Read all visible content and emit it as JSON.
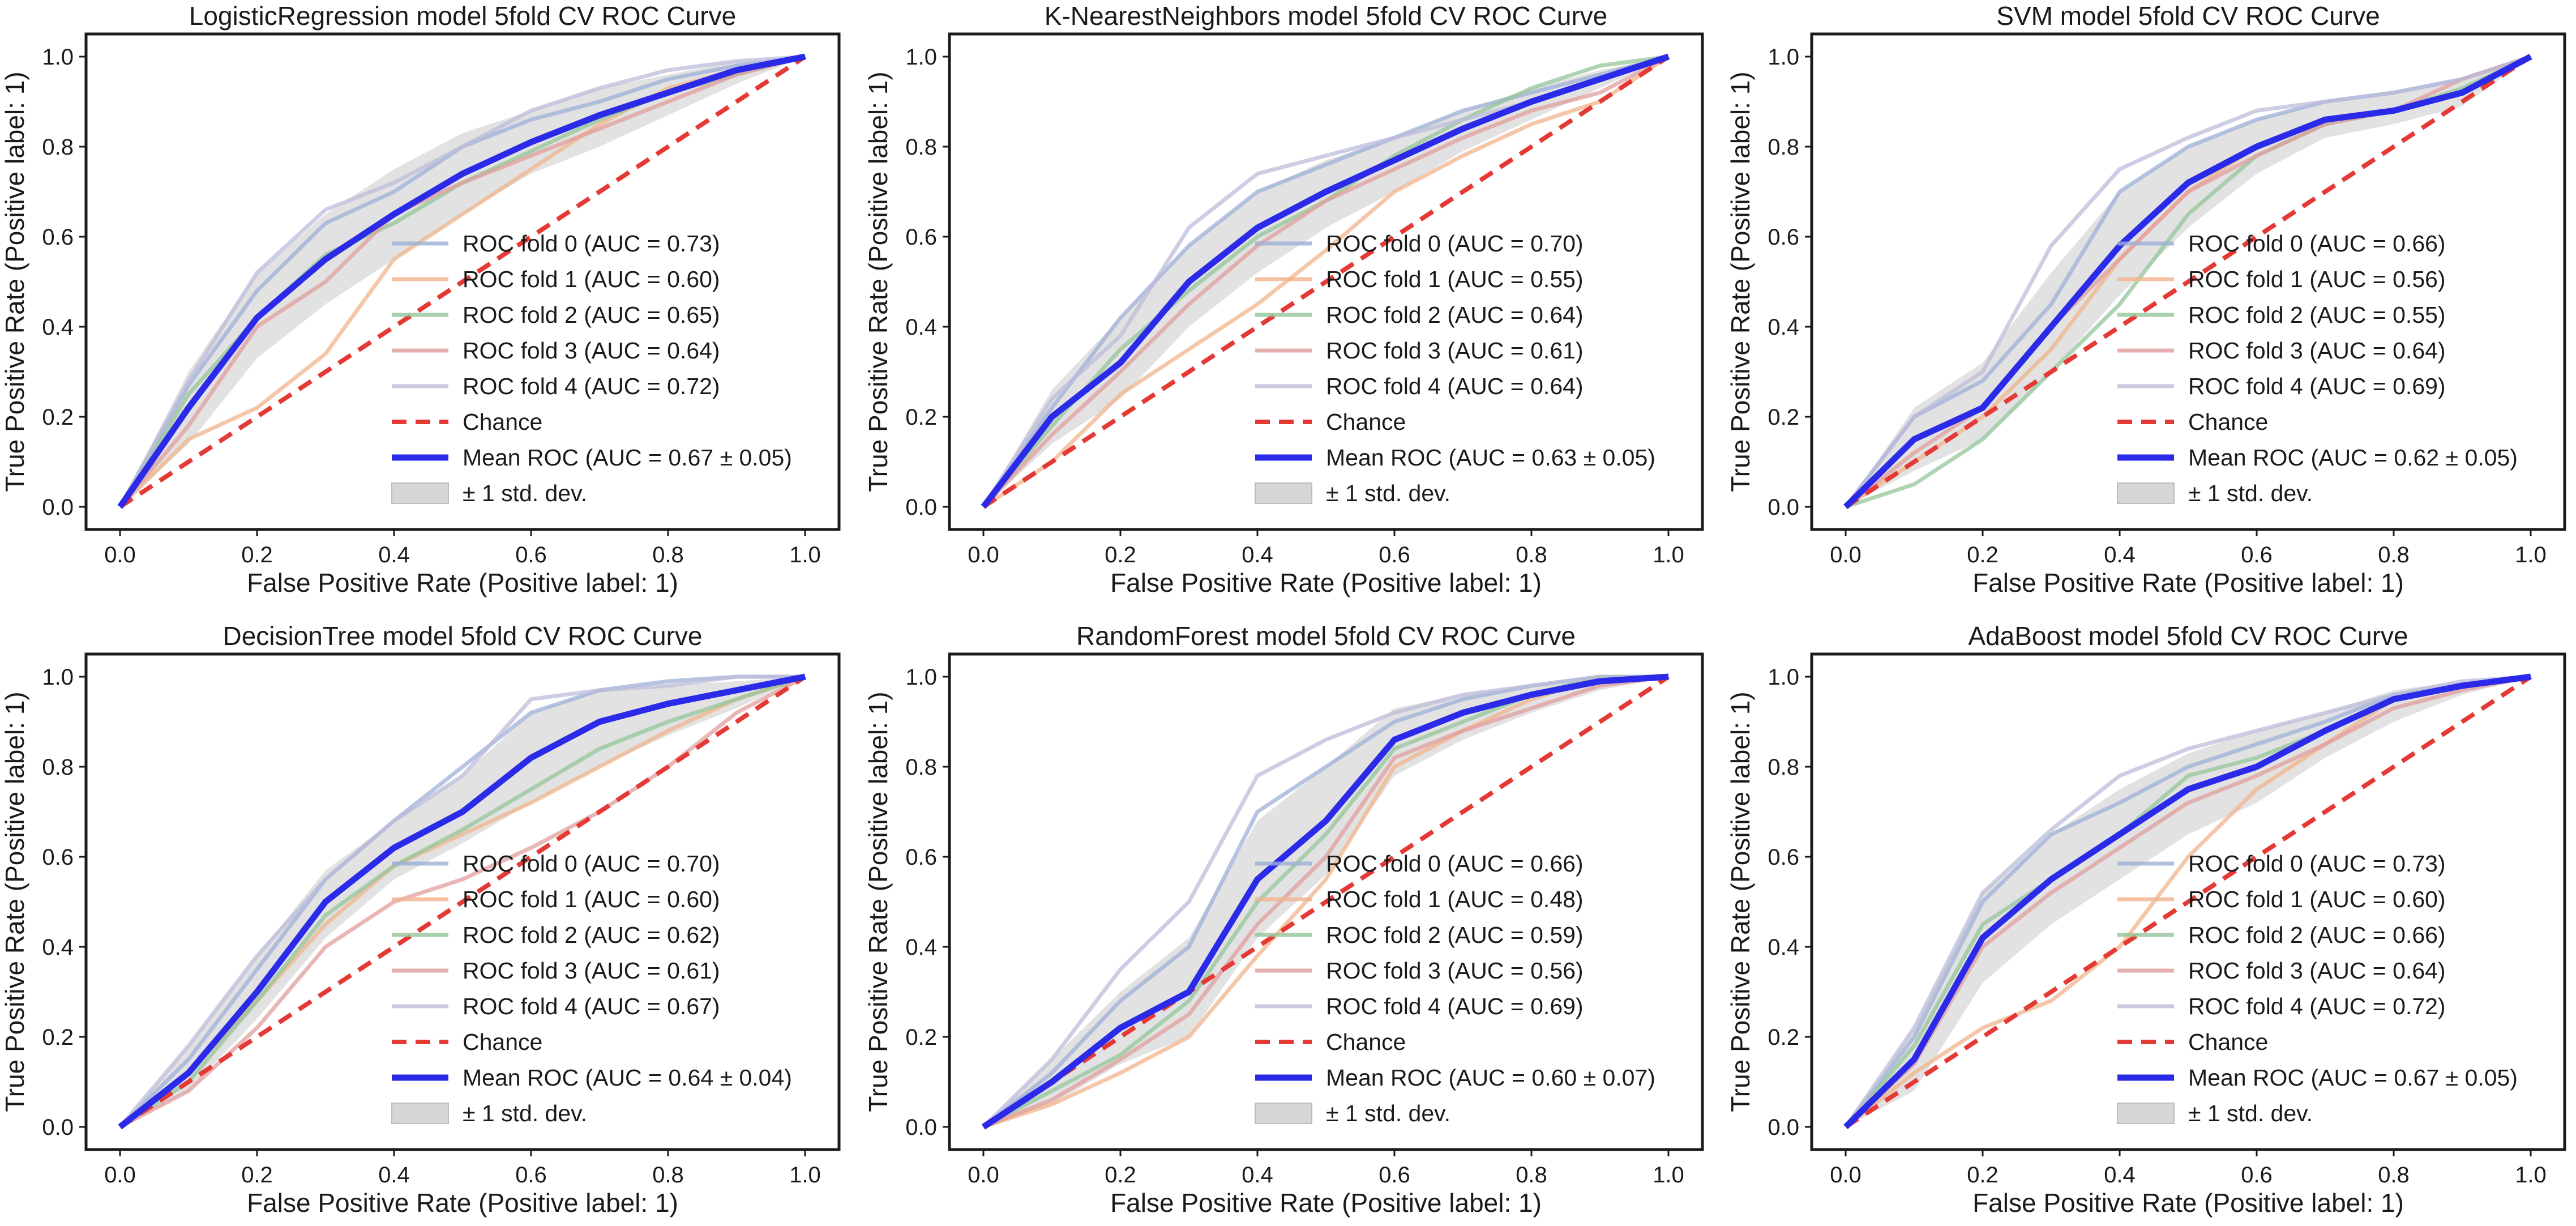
{
  "figure": {
    "legend_location": "lower-right",
    "grid": false
  },
  "colors": {
    "fold": [
      "#9eb0d8",
      "#f2b48c",
      "#93c59a",
      "#e29d9d",
      "#bcbcdb"
    ],
    "chance": "#e53935",
    "mean": "#2a2ae8",
    "band": "#d6d6d6"
  },
  "chart_data": [
    {
      "type": "line",
      "title": "LogisticRegression model 5fold CV ROC Curve",
      "xlabel": "False Positive Rate (Positive label: 1)",
      "ylabel": "True Positive Rate (Positive label: 1)",
      "xlim": [
        0,
        1
      ],
      "ylim": [
        0,
        1
      ],
      "xticks": [
        "0.0",
        "0.2",
        "0.4",
        "0.6",
        "0.8",
        "1.0"
      ],
      "yticks": [
        "0.0",
        "0.2",
        "0.4",
        "0.6",
        "0.8",
        "1.0"
      ],
      "legend": [
        "ROC fold 0 (AUC = 0.73)",
        "ROC fold 1 (AUC = 0.60)",
        "ROC fold 2 (AUC = 0.65)",
        "ROC fold 3 (AUC = 0.64)",
        "ROC fold 4 (AUC = 0.72)",
        "Chance",
        "Mean ROC (AUC = 0.67 ± 0.05)",
        "± 1 std. dev."
      ],
      "x": [
        0,
        0.1,
        0.2,
        0.3,
        0.4,
        0.5,
        0.6,
        0.7,
        0.8,
        0.9,
        1.0
      ],
      "mean_tpr": [
        0,
        0.22,
        0.42,
        0.55,
        0.65,
        0.74,
        0.81,
        0.87,
        0.92,
        0.97,
        1.0
      ],
      "std_upper": [
        0,
        0.3,
        0.52,
        0.65,
        0.75,
        0.83,
        0.88,
        0.93,
        0.96,
        0.99,
        1.0
      ],
      "std_lower": [
        0,
        0.14,
        0.33,
        0.45,
        0.55,
        0.65,
        0.74,
        0.8,
        0.87,
        0.94,
        1.0
      ],
      "folds": [
        [
          0,
          0.27,
          0.48,
          0.63,
          0.7,
          0.8,
          0.86,
          0.9,
          0.95,
          0.98,
          1.0
        ],
        [
          0,
          0.15,
          0.22,
          0.34,
          0.55,
          0.65,
          0.75,
          0.85,
          0.93,
          0.97,
          1.0
        ],
        [
          0,
          0.25,
          0.42,
          0.56,
          0.63,
          0.72,
          0.79,
          0.86,
          0.92,
          0.96,
          1.0
        ],
        [
          0,
          0.18,
          0.4,
          0.5,
          0.65,
          0.72,
          0.78,
          0.84,
          0.9,
          0.96,
          1.0
        ],
        [
          0,
          0.28,
          0.52,
          0.66,
          0.72,
          0.8,
          0.88,
          0.93,
          0.97,
          0.99,
          1.0
        ]
      ]
    },
    {
      "type": "line",
      "title": "K-NearestNeighbors model 5fold CV ROC Curve",
      "xlabel": "False Positive Rate (Positive label: 1)",
      "ylabel": "True Positive Rate (Positive label: 1)",
      "xlim": [
        0,
        1
      ],
      "ylim": [
        0,
        1
      ],
      "xticks": [
        "0.0",
        "0.2",
        "0.4",
        "0.6",
        "0.8",
        "1.0"
      ],
      "yticks": [
        "0.0",
        "0.2",
        "0.4",
        "0.6",
        "0.8",
        "1.0"
      ],
      "legend": [
        "ROC fold 0 (AUC = 0.70)",
        "ROC fold 1 (AUC = 0.55)",
        "ROC fold 2 (AUC = 0.64)",
        "ROC fold 3 (AUC = 0.61)",
        "ROC fold 4 (AUC = 0.64)",
        "Chance",
        "Mean ROC (AUC = 0.63 ± 0.05)",
        "± 1 std. dev."
      ],
      "x": [
        0,
        0.1,
        0.2,
        0.3,
        0.4,
        0.5,
        0.6,
        0.7,
        0.8,
        0.9,
        1.0
      ],
      "mean_tpr": [
        0,
        0.2,
        0.32,
        0.5,
        0.62,
        0.7,
        0.77,
        0.84,
        0.9,
        0.95,
        1.0
      ],
      "std_upper": [
        0,
        0.26,
        0.42,
        0.58,
        0.7,
        0.77,
        0.82,
        0.88,
        0.93,
        0.97,
        1.0
      ],
      "std_lower": [
        0,
        0.14,
        0.24,
        0.4,
        0.52,
        0.62,
        0.7,
        0.79,
        0.86,
        0.93,
        1.0
      ],
      "folds": [
        [
          0,
          0.22,
          0.42,
          0.58,
          0.7,
          0.76,
          0.82,
          0.88,
          0.92,
          0.96,
          1.0
        ],
        [
          0,
          0.1,
          0.25,
          0.35,
          0.45,
          0.57,
          0.7,
          0.78,
          0.85,
          0.9,
          1.0
        ],
        [
          0,
          0.18,
          0.35,
          0.48,
          0.6,
          0.68,
          0.78,
          0.86,
          0.93,
          0.98,
          1.0
        ],
        [
          0,
          0.16,
          0.3,
          0.45,
          0.58,
          0.68,
          0.75,
          0.82,
          0.88,
          0.92,
          1.0
        ],
        [
          0,
          0.24,
          0.38,
          0.62,
          0.74,
          0.78,
          0.82,
          0.86,
          0.9,
          0.95,
          1.0
        ]
      ]
    },
    {
      "type": "line",
      "title": "SVM model 5fold CV ROC Curve",
      "xlabel": "False Positive Rate (Positive label: 1)",
      "ylabel": "True Positive Rate (Positive label: 1)",
      "xlim": [
        0,
        1
      ],
      "ylim": [
        0,
        1
      ],
      "xticks": [
        "0.0",
        "0.2",
        "0.4",
        "0.6",
        "0.8",
        "1.0"
      ],
      "yticks": [
        "0.0",
        "0.2",
        "0.4",
        "0.6",
        "0.8",
        "1.0"
      ],
      "legend": [
        "ROC fold 0 (AUC = 0.66)",
        "ROC fold 1 (AUC = 0.56)",
        "ROC fold 2 (AUC = 0.55)",
        "ROC fold 3 (AUC = 0.64)",
        "ROC fold 4 (AUC = 0.69)",
        "Chance",
        "Mean ROC (AUC = 0.62 ± 0.05)",
        "± 1 std. dev."
      ],
      "x": [
        0,
        0.1,
        0.2,
        0.3,
        0.4,
        0.5,
        0.6,
        0.7,
        0.8,
        0.9,
        1.0
      ],
      "mean_tpr": [
        0,
        0.15,
        0.22,
        0.4,
        0.58,
        0.72,
        0.8,
        0.86,
        0.88,
        0.92,
        1.0
      ],
      "std_upper": [
        0,
        0.22,
        0.32,
        0.52,
        0.7,
        0.8,
        0.86,
        0.9,
        0.92,
        0.95,
        1.0
      ],
      "std_lower": [
        0,
        0.08,
        0.15,
        0.3,
        0.47,
        0.62,
        0.74,
        0.82,
        0.85,
        0.89,
        1.0
      ],
      "folds": [
        [
          0,
          0.2,
          0.28,
          0.45,
          0.7,
          0.8,
          0.86,
          0.9,
          0.92,
          0.95,
          1.0
        ],
        [
          0,
          0.1,
          0.2,
          0.35,
          0.55,
          0.7,
          0.8,
          0.86,
          0.88,
          0.92,
          1.0
        ],
        [
          0,
          0.05,
          0.15,
          0.3,
          0.45,
          0.65,
          0.78,
          0.85,
          0.88,
          0.93,
          1.0
        ],
        [
          0,
          0.12,
          0.22,
          0.4,
          0.55,
          0.7,
          0.78,
          0.85,
          0.88,
          0.95,
          1.0
        ],
        [
          0,
          0.2,
          0.3,
          0.58,
          0.75,
          0.82,
          0.88,
          0.9,
          0.92,
          0.95,
          1.0
        ]
      ]
    },
    {
      "type": "line",
      "title": "DecisionTree model 5fold CV ROC Curve",
      "xlabel": "False Positive Rate (Positive label: 1)",
      "ylabel": "True Positive Rate (Positive label: 1)",
      "xlim": [
        0,
        1
      ],
      "ylim": [
        0,
        1
      ],
      "xticks": [
        "0.0",
        "0.2",
        "0.4",
        "0.6",
        "0.8",
        "1.0"
      ],
      "yticks": [
        "0.0",
        "0.2",
        "0.4",
        "0.6",
        "0.8",
        "1.0"
      ],
      "legend": [
        "ROC fold 0 (AUC = 0.70)",
        "ROC fold 1 (AUC = 0.60)",
        "ROC fold 2 (AUC = 0.62)",
        "ROC fold 3 (AUC = 0.61)",
        "ROC fold 4 (AUC = 0.67)",
        "Chance",
        "Mean ROC (AUC = 0.64 ± 0.04)",
        "± 1 std. dev."
      ],
      "x": [
        0,
        0.1,
        0.2,
        0.3,
        0.4,
        0.5,
        0.6,
        0.7,
        0.8,
        0.9,
        1.0
      ],
      "mean_tpr": [
        0,
        0.12,
        0.3,
        0.5,
        0.62,
        0.7,
        0.82,
        0.9,
        0.94,
        0.97,
        1.0
      ],
      "std_upper": [
        0,
        0.18,
        0.38,
        0.57,
        0.68,
        0.78,
        0.92,
        0.97,
        0.98,
        0.99,
        1.0
      ],
      "std_lower": [
        0,
        0.08,
        0.24,
        0.42,
        0.55,
        0.63,
        0.72,
        0.8,
        0.87,
        0.93,
        1.0
      ],
      "folds": [
        [
          0,
          0.15,
          0.35,
          0.55,
          0.68,
          0.8,
          0.92,
          0.97,
          0.99,
          1.0,
          1.0
        ],
        [
          0,
          0.12,
          0.28,
          0.45,
          0.58,
          0.65,
          0.72,
          0.8,
          0.88,
          0.95,
          1.0
        ],
        [
          0,
          0.1,
          0.28,
          0.47,
          0.58,
          0.66,
          0.75,
          0.84,
          0.9,
          0.95,
          1.0
        ],
        [
          0,
          0.08,
          0.22,
          0.4,
          0.5,
          0.55,
          0.62,
          0.7,
          0.8,
          0.92,
          1.0
        ],
        [
          0,
          0.18,
          0.38,
          0.55,
          0.68,
          0.78,
          0.95,
          0.97,
          0.98,
          1.0,
          1.0
        ]
      ]
    },
    {
      "type": "line",
      "title": "RandomForest model 5fold CV ROC Curve",
      "xlabel": "False Positive Rate (Positive label: 1)",
      "ylabel": "True Positive Rate (Positive label: 1)",
      "xlim": [
        0,
        1
      ],
      "ylim": [
        0,
        1
      ],
      "xticks": [
        "0.0",
        "0.2",
        "0.4",
        "0.6",
        "0.8",
        "1.0"
      ],
      "yticks": [
        "0.0",
        "0.2",
        "0.4",
        "0.6",
        "0.8",
        "1.0"
      ],
      "legend": [
        "ROC fold 0 (AUC = 0.66)",
        "ROC fold 1 (AUC = 0.48)",
        "ROC fold 2 (AUC = 0.59)",
        "ROC fold 3 (AUC = 0.56)",
        "ROC fold 4 (AUC = 0.69)",
        "Chance",
        "Mean ROC (AUC = 0.60 ± 0.07)",
        "± 1 std. dev."
      ],
      "x": [
        0,
        0.1,
        0.2,
        0.3,
        0.4,
        0.5,
        0.6,
        0.7,
        0.8,
        0.9,
        1.0
      ],
      "mean_tpr": [
        0,
        0.1,
        0.22,
        0.3,
        0.55,
        0.68,
        0.86,
        0.92,
        0.96,
        0.99,
        1.0
      ],
      "std_upper": [
        0,
        0.15,
        0.3,
        0.42,
        0.68,
        0.8,
        0.93,
        0.96,
        0.98,
        1.0,
        1.0
      ],
      "std_lower": [
        0,
        0.05,
        0.14,
        0.2,
        0.42,
        0.56,
        0.78,
        0.86,
        0.92,
        0.97,
        1.0
      ],
      "folds": [
        [
          0,
          0.12,
          0.28,
          0.4,
          0.7,
          0.8,
          0.9,
          0.95,
          0.98,
          1.0,
          1.0
        ],
        [
          0,
          0.05,
          0.12,
          0.2,
          0.38,
          0.55,
          0.8,
          0.88,
          0.95,
          1.0,
          1.0
        ],
        [
          0,
          0.08,
          0.16,
          0.28,
          0.5,
          0.65,
          0.84,
          0.9,
          0.96,
          1.0,
          1.0
        ],
        [
          0,
          0.06,
          0.15,
          0.25,
          0.45,
          0.6,
          0.82,
          0.88,
          0.93,
          0.98,
          1.0
        ],
        [
          0,
          0.15,
          0.35,
          0.5,
          0.78,
          0.86,
          0.92,
          0.96,
          0.98,
          1.0,
          1.0
        ]
      ]
    },
    {
      "type": "line",
      "title": "AdaBoost model 5fold CV ROC Curve",
      "xlabel": "False Positive Rate (Positive label: 1)",
      "ylabel": "True Positive Rate (Positive label: 1)",
      "xlim": [
        0,
        1
      ],
      "ylim": [
        0,
        1
      ],
      "xticks": [
        "0.0",
        "0.2",
        "0.4",
        "0.6",
        "0.8",
        "1.0"
      ],
      "yticks": [
        "0.0",
        "0.2",
        "0.4",
        "0.6",
        "0.8",
        "1.0"
      ],
      "legend": [
        "ROC fold 0 (AUC = 0.73)",
        "ROC fold 1 (AUC = 0.60)",
        "ROC fold 2 (AUC = 0.66)",
        "ROC fold 3 (AUC = 0.64)",
        "ROC fold 4 (AUC = 0.72)",
        "Chance",
        "Mean ROC (AUC = 0.67 ± 0.05)",
        "± 1 std. dev."
      ],
      "x": [
        0,
        0.1,
        0.2,
        0.3,
        0.4,
        0.5,
        0.6,
        0.7,
        0.8,
        0.9,
        1.0
      ],
      "mean_tpr": [
        0,
        0.15,
        0.42,
        0.55,
        0.65,
        0.75,
        0.8,
        0.88,
        0.95,
        0.98,
        1.0
      ],
      "std_upper": [
        0,
        0.22,
        0.52,
        0.65,
        0.75,
        0.83,
        0.88,
        0.92,
        0.97,
        0.99,
        1.0
      ],
      "std_lower": [
        0,
        0.08,
        0.32,
        0.45,
        0.55,
        0.65,
        0.72,
        0.82,
        0.9,
        0.96,
        1.0
      ],
      "folds": [
        [
          0,
          0.2,
          0.5,
          0.65,
          0.72,
          0.8,
          0.85,
          0.9,
          0.96,
          0.98,
          1.0
        ],
        [
          0,
          0.12,
          0.22,
          0.28,
          0.4,
          0.6,
          0.75,
          0.85,
          0.95,
          0.98,
          1.0
        ],
        [
          0,
          0.18,
          0.45,
          0.55,
          0.65,
          0.78,
          0.82,
          0.88,
          0.95,
          0.98,
          1.0
        ],
        [
          0,
          0.14,
          0.4,
          0.52,
          0.62,
          0.72,
          0.78,
          0.85,
          0.93,
          0.97,
          1.0
        ],
        [
          0,
          0.22,
          0.52,
          0.66,
          0.78,
          0.84,
          0.88,
          0.92,
          0.96,
          0.99,
          1.0
        ]
      ]
    }
  ]
}
